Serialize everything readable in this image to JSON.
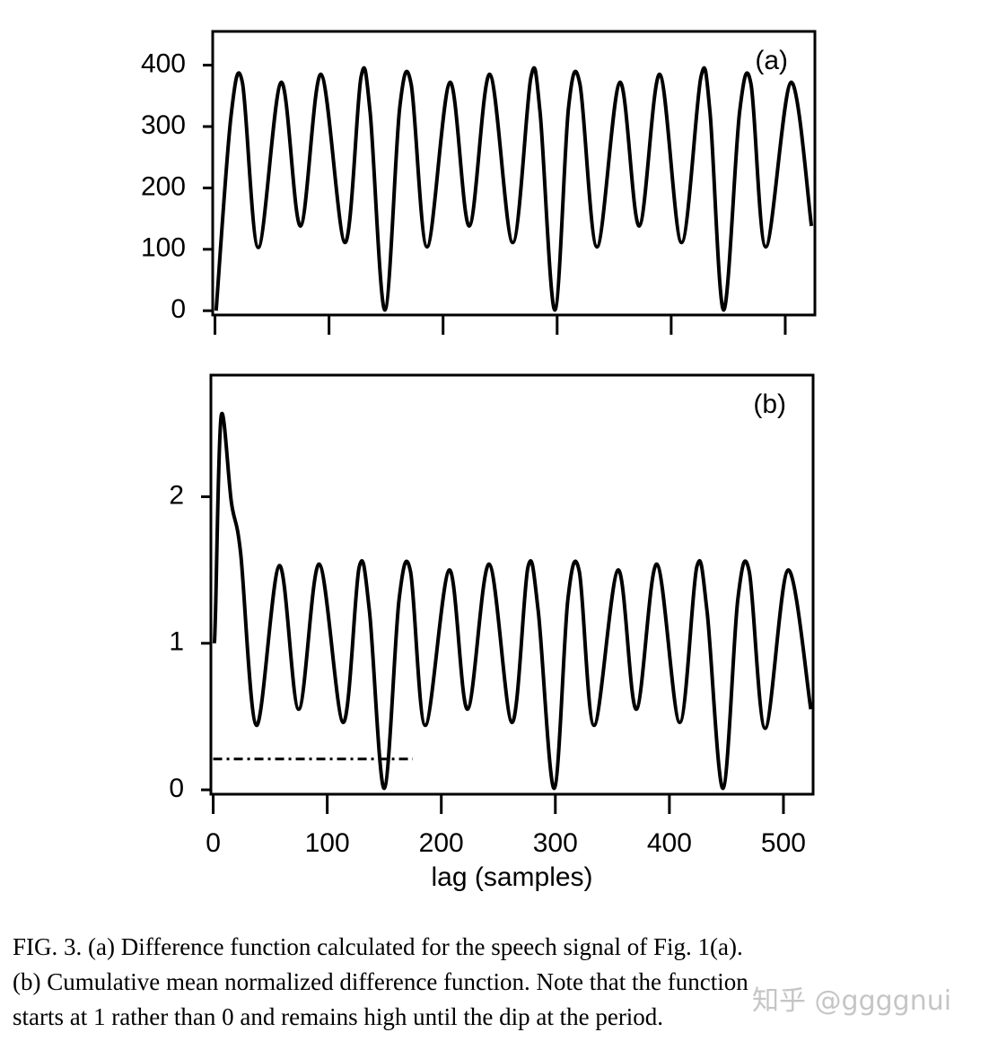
{
  "chart_data": [
    {
      "type": "line",
      "annotation": "(a)",
      "xlim": [
        -2,
        526
      ],
      "ylim": [
        -7,
        455
      ],
      "xticks": [
        0,
        100,
        200,
        300,
        400,
        500
      ],
      "show_xtick_labels": false,
      "yticks": [
        0,
        100,
        200,
        300,
        400
      ],
      "series": [
        {
          "color": "#000000",
          "x": [
            1,
            14,
            24,
            38,
            58,
            75,
            93,
            114,
            128,
            136,
            149,
            162,
            172,
            186,
            206,
            223,
            241,
            261,
            277,
            285,
            298,
            310,
            320,
            335,
            355,
            372,
            390,
            409,
            426,
            434,
            446,
            460,
            470,
            483,
            505,
            523
          ],
          "values": [
            0,
            316,
            372,
            103,
            372,
            138,
            385,
            111,
            380,
            324,
            1,
            331,
            369,
            104,
            372,
            138,
            385,
            111,
            380,
            324,
            1,
            331,
            369,
            104,
            372,
            138,
            385,
            111,
            380,
            324,
            1,
            324,
            369,
            104,
            372,
            138
          ]
        }
      ]
    },
    {
      "type": "line",
      "annotation": "(b)",
      "xlabel": "lag (samples)",
      "xlim": [
        -2,
        526
      ],
      "ylim": [
        -0.03,
        2.83
      ],
      "xticks": [
        0,
        100,
        200,
        300,
        400,
        500
      ],
      "show_xtick_labels": true,
      "yticks": [
        0,
        1,
        2
      ],
      "series": [
        {
          "color": "#000000",
          "x": [
            1,
            2,
            7,
            16,
            24,
            38,
            58,
            75,
            93,
            114,
            128,
            137,
            150,
            163,
            173,
            186,
            207,
            223,
            242,
            262,
            276,
            285,
            299,
            311,
            321,
            334,
            355,
            371,
            389,
            409,
            424,
            433,
            447,
            460,
            470,
            484,
            504,
            524
          ],
          "values": [
            1.0,
            1.2,
            2.55,
            1.96,
            1.62,
            0.44,
            1.53,
            0.55,
            1.54,
            0.46,
            1.52,
            1.22,
            0.01,
            1.3,
            1.49,
            0.44,
            1.5,
            0.55,
            1.54,
            0.46,
            1.52,
            1.22,
            0.01,
            1.3,
            1.49,
            0.44,
            1.5,
            0.55,
            1.54,
            0.46,
            1.52,
            1.22,
            0.01,
            1.3,
            1.49,
            0.42,
            1.5,
            0.55
          ]
        },
        {
          "color": "#000000",
          "dash": "dashdot",
          "x": [
            0,
            175
          ],
          "values": [
            0.21,
            0.21
          ]
        }
      ]
    }
  ],
  "caption": [
    "FIG. 3.  (a) Difference function calculated for the speech signal of Fig. 1(a).",
    "(b) Cumulative mean normalized difference function. Note that the function",
    "starts at 1 rather than 0 and remains high until the dip at the period."
  ],
  "watermark": "知乎 @ggggnui"
}
